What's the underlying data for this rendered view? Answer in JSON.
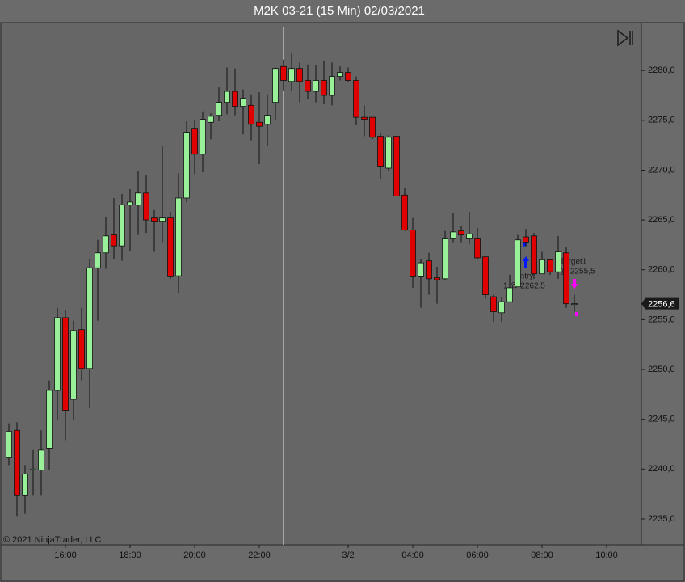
{
  "chart_data": {
    "type": "candlestick",
    "title": "M2K 03-21 (15 Min)  02/03/2021",
    "copyright": "© 2021 NinjaTrader, LLC",
    "categories": [
      null,
      null,
      null,
      null,
      null,
      null,
      null,
      "16:00",
      null,
      null,
      null,
      null,
      null,
      null,
      null,
      "18:00",
      null,
      null,
      null,
      null,
      null,
      null,
      null,
      "20:00",
      null,
      null,
      null,
      null,
      null,
      null,
      null,
      "22:00",
      null,
      null,
      null,
      null,
      null,
      null,
      null,
      null,
      null,
      null,
      "3/2",
      null,
      null,
      null,
      null,
      null,
      null,
      null,
      "04:00",
      null,
      null,
      null,
      null,
      null,
      null,
      null,
      "06:00",
      null,
      null,
      null,
      null,
      null,
      null,
      null,
      "08:00",
      null,
      null,
      null,
      null,
      null,
      null,
      null,
      "10:00",
      null,
      null,
      null
    ],
    "open": [
      2241.2,
      2243.9,
      2237.4,
      2239.9,
      2239.9,
      2242.1,
      2247.9,
      2255.2,
      2247.0,
      2254.0,
      2250.1,
      2260.2,
      2261.7,
      2263.5,
      2262.4,
      2266.5,
      2266.5,
      2267.7,
      2265.2,
      2264.8,
      2265.2,
      2259.4,
      2267.2,
      2274.2,
      2271.6,
      2274.8,
      2275.5,
      2276.8,
      2277.9,
      2276.4,
      2276.5,
      2274.8,
      2274.6,
      2276.8,
      2280.4,
      2278.9,
      2280.2,
      2279.0,
      2277.9,
      2279.0,
      2277.5,
      2279.4,
      2279.8,
      2279.0,
      2275.3,
      2275.3,
      2273.4,
      2270.2,
      2273.4,
      2267.5,
      2264.0,
      2259.3,
      2260.9,
      2259.2,
      2259.1,
      2263.1,
      2263.9,
      2263.1,
      2263.1,
      2261.3,
      2257.3,
      2255.7,
      2256.8,
      2258.3,
      2263.3,
      2263.4,
      2259.6,
      2261.0,
      2259.8,
      2261.7,
      2256.6,
      null,
      null,
      null,
      null,
      null,
      null,
      null
    ],
    "high": [
      2244.6,
      2244.7,
      2240.4,
      2241.9,
      2243.9,
      2248.9,
      2256.2,
      2256.0,
      2254.9,
      2256.2,
      2261.1,
      2263.0,
      2265.3,
      2267.2,
      2267.6,
      2268.1,
      2269.9,
      2269.5,
      2266.0,
      2272.4,
      2265.8,
      2269.7,
      2274.9,
      2275.1,
      2275.9,
      2275.7,
      2278.3,
      2280.3,
      2280.2,
      2278.1,
      2277.6,
      2277.8,
      2277.6,
      2280.3,
      2281.1,
      2281.7,
      2280.8,
      2280.6,
      2280.5,
      2281.0,
      2280.8,
      2280.4,
      2280.3,
      2279.4,
      2276.5,
      2275.3,
      2273.7,
      2273.5,
      2273.4,
      2268.2,
      2265.2,
      2261.1,
      2261.7,
      2260.3,
      2263.9,
      2265.7,
      2264.4,
      2265.8,
      2264.2,
      2261.3,
      2257.5,
      2257.3,
      2259.5,
      2263.5,
      2264.1,
      2263.7,
      2261.8,
      2261.1,
      2263.4,
      2262.3,
      2257.5,
      null,
      null,
      null,
      null,
      null,
      null,
      null
    ],
    "low": [
      2240.4,
      2235.3,
      2235.5,
      2237.4,
      2237.4,
      2239.9,
      2244.9,
      2242.9,
      2244.9,
      2248.9,
      2246.1,
      2254.9,
      2260.1,
      2261.1,
      2260.9,
      2261.9,
      2263.5,
      2263.7,
      2261.8,
      2262.7,
      2259.1,
      2257.7,
      2266.8,
      2269.6,
      2269.8,
      2273.1,
      2274.9,
      2275.6,
      2275.5,
      2273.6,
      2273.0,
      2270.6,
      2272.4,
      2275.1,
      2278.0,
      2278.0,
      2276.8,
      2277.1,
      2276.8,
      2276.6,
      2276.5,
      2279.0,
      2278.9,
      2274.5,
      2273.4,
      2273.1,
      2269.1,
      2269.9,
      2267.4,
      2263.9,
      2258.2,
      2256.2,
      2257.5,
      2256.6,
      2259.0,
      2262.7,
      2262.7,
      2262.6,
      2261.1,
      2257.1,
      2254.8,
      2254.8,
      2256.8,
      2258.3,
      2262.3,
      2259.1,
      2259.6,
      2259.5,
      2259.1,
      2256.2,
      2255.8,
      null,
      null,
      null,
      null,
      null,
      null,
      null
    ],
    "close": [
      2243.8,
      2237.4,
      2239.5,
      2240.0,
      2241.9,
      2247.9,
      2255.2,
      2245.9,
      2253.9,
      2250.1,
      2260.2,
      2261.7,
      2263.4,
      2262.4,
      2266.5,
      2266.8,
      2267.7,
      2265.0,
      2264.8,
      2265.2,
      2259.3,
      2267.2,
      2273.8,
      2271.6,
      2275.1,
      2275.4,
      2276.8,
      2277.9,
      2276.4,
      2277.2,
      2274.6,
      2274.4,
      2275.5,
      2280.2,
      2279.0,
      2280.2,
      2278.9,
      2277.9,
      2279.0,
      2277.5,
      2279.4,
      2279.8,
      2279.0,
      2275.3,
      2275.1,
      2273.3,
      2270.4,
      2273.3,
      2267.4,
      2264.0,
      2259.3,
      2260.7,
      2259.1,
      2259.0,
      2263.1,
      2263.8,
      2263.5,
      2263.6,
      2261.2,
      2257.5,
      2255.8,
      2256.8,
      2258.2,
      2263.0,
      2262.7,
      2259.6,
      2261.0,
      2259.8,
      2261.8,
      2256.6,
      2256.6,
      null,
      null,
      null,
      null,
      null,
      null,
      null
    ],
    "up_color": "#98f098",
    "down_color": "#e00000",
    "ylim": [
      2232.4,
      2284.8
    ],
    "yticks": [
      {
        "value": 2235,
        "label": "2235,0"
      },
      {
        "value": 2240,
        "label": "2240,0"
      },
      {
        "value": 2245,
        "label": "2245,0"
      },
      {
        "value": 2250,
        "label": "2250,0"
      },
      {
        "value": 2255,
        "label": "2255,0"
      },
      {
        "value": 2260,
        "label": "2260,0"
      },
      {
        "value": 2265,
        "label": "2265,0"
      },
      {
        "value": 2270,
        "label": "2270,0"
      },
      {
        "value": 2275,
        "label": "2275,0"
      },
      {
        "value": 2280,
        "label": "2280,0"
      }
    ],
    "current_price": {
      "value": 2256.6,
      "label": "2256,6"
    },
    "annotations": {
      "entry": "Entry",
      "entry_detail": "1 @ 2262,5",
      "target": "Target1",
      "target_detail": "@ 2255,5"
    }
  }
}
